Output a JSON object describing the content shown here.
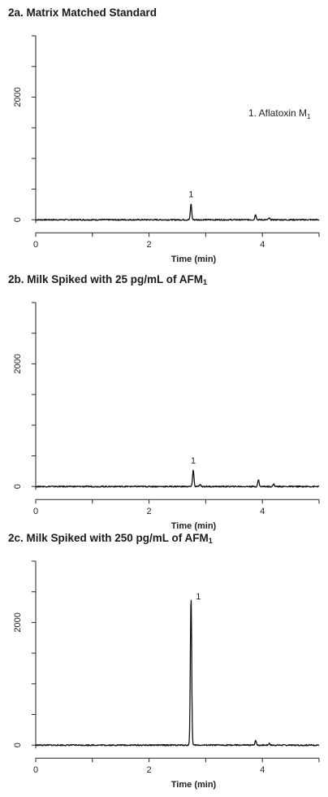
{
  "panels": [
    {
      "title_main": "2a. Matrix Matched Standard",
      "title_sub": ""
    },
    {
      "title_main": "2b. Milk Spiked with 25 pg/mL of AFM",
      "title_sub": "1"
    },
    {
      "title_main": "2c. Milk Spiked with 250 pg/mL of AFM",
      "title_sub": "1"
    }
  ],
  "legend_note": {
    "text": "1. Aflatoxin M",
    "sub": "1"
  },
  "chart_data": [
    {
      "type": "line",
      "title": "2a. Matrix Matched Standard",
      "xlabel": "Time (min)",
      "ylabel": "",
      "xlim": [
        0,
        5
      ],
      "ylim": [
        -50,
        3000
      ],
      "x_ticks": [
        0,
        2,
        4
      ],
      "y_ticks": [
        0,
        2000
      ],
      "grid": false,
      "annotations": [
        {
          "text": "1. Aflatoxin M1"
        }
      ],
      "peaks": [
        {
          "label": "1",
          "x": 2.74,
          "y": 260,
          "width": 0.012
        },
        {
          "label": "",
          "x": 3.88,
          "y": 90,
          "width": 0.012
        },
        {
          "label": "",
          "x": 4.12,
          "y": 25,
          "width": 0.012
        }
      ],
      "baseline_noise": 10
    },
    {
      "type": "line",
      "title": "2b. Milk Spiked with 25 pg/mL of AFM1",
      "xlabel": "Time (min)",
      "ylabel": "",
      "xlim": [
        0,
        5
      ],
      "ylim": [
        -50,
        3000
      ],
      "x_ticks": [
        0,
        2,
        4
      ],
      "y_ticks": [
        0,
        2000
      ],
      "grid": false,
      "peaks": [
        {
          "label": "1",
          "x": 2.78,
          "y": 270,
          "width": 0.012
        },
        {
          "label": "",
          "x": 2.9,
          "y": 25,
          "width": 0.015
        },
        {
          "label": "",
          "x": 3.93,
          "y": 110,
          "width": 0.012
        },
        {
          "label": "",
          "x": 4.2,
          "y": 40,
          "width": 0.012
        }
      ],
      "baseline_noise": 10
    },
    {
      "type": "line",
      "title": "2c. Milk Spiked with 250 pg/mL of AFM1",
      "xlabel": "Time (min)",
      "ylabel": "",
      "xlim": [
        0,
        5
      ],
      "ylim": [
        -50,
        3000
      ],
      "x_ticks": [
        0,
        2,
        4
      ],
      "y_ticks": [
        0,
        2000
      ],
      "grid": false,
      "peaks": [
        {
          "label": "1",
          "x": 2.74,
          "y": 2430,
          "width": 0.012
        },
        {
          "label": "",
          "x": 3.88,
          "y": 80,
          "width": 0.012
        },
        {
          "label": "",
          "x": 4.12,
          "y": 30,
          "width": 0.012
        }
      ],
      "baseline_noise": 10
    }
  ]
}
